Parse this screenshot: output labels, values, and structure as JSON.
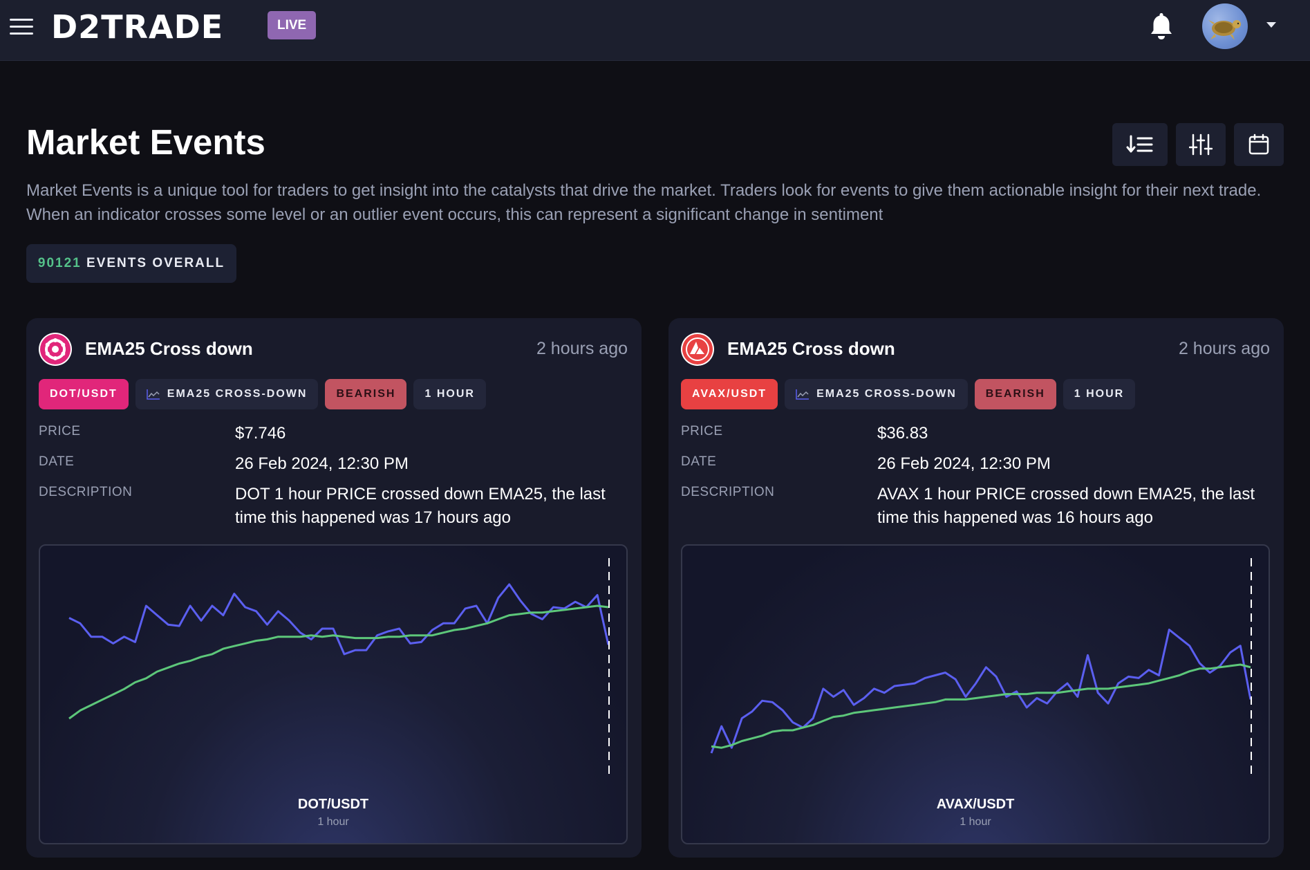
{
  "topbar": {
    "logo_text": "D2TRADE",
    "live_badge": "LIVE"
  },
  "header": {
    "title": "Market Events",
    "intro": "Market Events is a unique tool for traders to get insight into the catalysts that drive the market. Traders look for events to give them actionable insight for their next trade. When an indicator crosses some level or an outlier event occurs, this can represent a significant change in sentiment",
    "events_count": "90121",
    "events_label": "EVENTS OVERALL"
  },
  "colors": {
    "dot_brand": "#e1267a",
    "avax_brand": "#e84142",
    "bearish": "#c25461",
    "price_line": "#5b5ff0",
    "ema_line": "#5dc77a",
    "count_green": "#55c28a"
  },
  "cards": [
    {
      "icon": "polkadot-icon",
      "title": "EMA25 Cross down",
      "time": "2 hours ago",
      "pair": "DOT/USDT",
      "indicator": "EMA25 CROSS-DOWN",
      "sentiment": "BEARISH",
      "timeframe": "1 HOUR",
      "price_label": "PRICE",
      "price": "$7.746",
      "date_label": "DATE",
      "date": "26 Feb 2024, 12:30 PM",
      "description_label": "DESCRIPTION",
      "description": "DOT 1 hour PRICE crossed down EMA25, the last time this happened was 17 hours ago",
      "chart_symbol": "DOT/USDT",
      "chart_timeframe": "1 hour"
    },
    {
      "icon": "avalanche-icon",
      "title": "EMA25 Cross down",
      "time": "2 hours ago",
      "pair": "AVAX/USDT",
      "indicator": "EMA25 CROSS-DOWN",
      "sentiment": "BEARISH",
      "timeframe": "1 HOUR",
      "price_label": "PRICE",
      "price": "$36.83",
      "date_label": "DATE",
      "date": "26 Feb 2024, 12:30 PM",
      "description_label": "DESCRIPTION",
      "description": "AVAX 1 hour PRICE crossed down EMA25, the last time this happened was 16 hours ago",
      "chart_symbol": "AVAX/USDT",
      "chart_timeframe": "1 hour"
    }
  ],
  "chart_data": [
    {
      "type": "line",
      "title": "DOT/USDT",
      "subtitle": "1 hour",
      "grid": false,
      "ylim": [
        0,
        1
      ],
      "series": [
        {
          "color": "#5b5ff0",
          "values": [
            0.75,
            0.71,
            0.61,
            0.61,
            0.56,
            0.61,
            0.57,
            0.84,
            0.77,
            0.7,
            0.69,
            0.84,
            0.73,
            0.84,
            0.77,
            0.93,
            0.83,
            0.8,
            0.7,
            0.8,
            0.73,
            0.64,
            0.59,
            0.67,
            0.67,
            0.48,
            0.51,
            0.51,
            0.62,
            0.65,
            0.67,
            0.56,
            0.57,
            0.66,
            0.71,
            0.71,
            0.82,
            0.84,
            0.71,
            0.9,
            1.0,
            0.88,
            0.78,
            0.74,
            0.83,
            0.82,
            0.87,
            0.83,
            0.92,
            0.55
          ]
        },
        {
          "color": "#5dc77a",
          "values": [
            0.0,
            0.06,
            0.1,
            0.14,
            0.18,
            0.22,
            0.27,
            0.3,
            0.35,
            0.38,
            0.41,
            0.43,
            0.46,
            0.48,
            0.52,
            0.54,
            0.56,
            0.58,
            0.59,
            0.61,
            0.61,
            0.61,
            0.62,
            0.61,
            0.62,
            0.61,
            0.6,
            0.6,
            0.6,
            0.61,
            0.61,
            0.62,
            0.62,
            0.62,
            0.64,
            0.66,
            0.67,
            0.69,
            0.71,
            0.74,
            0.77,
            0.78,
            0.79,
            0.79,
            0.8,
            0.81,
            0.82,
            0.83,
            0.84,
            0.83
          ]
        }
      ]
    },
    {
      "type": "line",
      "title": "AVAX/USDT",
      "subtitle": "1 hour",
      "grid": false,
      "ylim": [
        0,
        1
      ],
      "series": [
        {
          "color": "#5b5ff0",
          "values": [
            0.0,
            0.2,
            0.04,
            0.26,
            0.31,
            0.39,
            0.38,
            0.32,
            0.23,
            0.19,
            0.26,
            0.48,
            0.42,
            0.47,
            0.36,
            0.41,
            0.48,
            0.45,
            0.5,
            0.51,
            0.52,
            0.56,
            0.58,
            0.6,
            0.55,
            0.42,
            0.52,
            0.64,
            0.57,
            0.42,
            0.46,
            0.34,
            0.41,
            0.37,
            0.46,
            0.52,
            0.42,
            0.73,
            0.45,
            0.37,
            0.52,
            0.57,
            0.56,
            0.62,
            0.58,
            0.92,
            0.86,
            0.8,
            0.67,
            0.6,
            0.65,
            0.75,
            0.8,
            0.4
          ]
        },
        {
          "color": "#5dc77a",
          "values": [
            0.05,
            0.04,
            0.06,
            0.09,
            0.11,
            0.13,
            0.16,
            0.17,
            0.17,
            0.19,
            0.21,
            0.24,
            0.27,
            0.28,
            0.3,
            0.31,
            0.32,
            0.33,
            0.34,
            0.35,
            0.36,
            0.37,
            0.38,
            0.4,
            0.4,
            0.4,
            0.41,
            0.42,
            0.43,
            0.44,
            0.44,
            0.44,
            0.45,
            0.45,
            0.45,
            0.46,
            0.47,
            0.48,
            0.48,
            0.48,
            0.49,
            0.5,
            0.51,
            0.52,
            0.54,
            0.56,
            0.58,
            0.61,
            0.63,
            0.63,
            0.64,
            0.65,
            0.66,
            0.64
          ]
        }
      ]
    }
  ]
}
